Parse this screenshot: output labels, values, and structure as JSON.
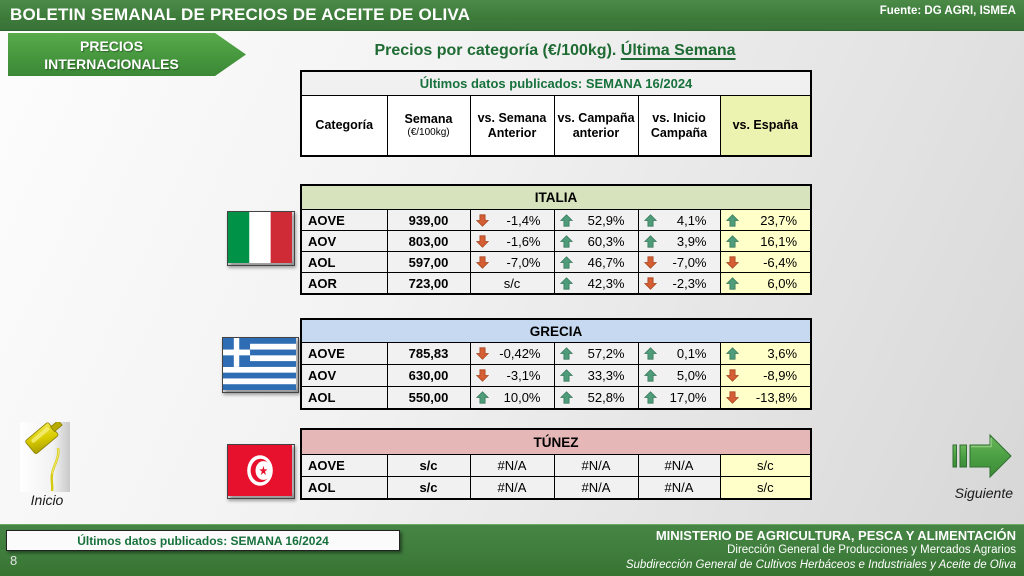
{
  "header": {
    "title": "BOLETIN SEMANAL DE PRECIOS DE ACEITE DE OLIVA",
    "source": "Fuente: DG AGRI, ISMEA"
  },
  "banner": {
    "line1": "PRECIOS",
    "line2": "INTERNACIONALES"
  },
  "page_title": {
    "main": "Precios por categoría (€/100kg). ",
    "underlined": "Última Semana"
  },
  "table_header": {
    "published": "Últimos datos publicados: SEMANA 16/2024",
    "columns": [
      {
        "label": "Categoría"
      },
      {
        "label": "Semana",
        "sub": "(€/100kg)"
      },
      {
        "label": "vs. Semana Anterior"
      },
      {
        "label": "vs. Campaña anterior"
      },
      {
        "label": "vs. Inicio Campaña"
      },
      {
        "label": "vs. España",
        "highlight": true
      }
    ]
  },
  "countries": [
    {
      "name": "ITALIA",
      "flag": "italy",
      "rows": [
        {
          "category": "AOVE",
          "week": "939,00",
          "pcts": [
            {
              "dir": "down",
              "v": "-1,4%"
            },
            {
              "dir": "up",
              "v": "52,9%"
            },
            {
              "dir": "up",
              "v": "4,1%"
            },
            {
              "dir": "up",
              "v": "23,7%"
            }
          ]
        },
        {
          "category": "AOV",
          "week": "803,00",
          "pcts": [
            {
              "dir": "down",
              "v": "-1,6%"
            },
            {
              "dir": "up",
              "v": "60,3%"
            },
            {
              "dir": "up",
              "v": "3,9%"
            },
            {
              "dir": "up",
              "v": "16,1%"
            }
          ]
        },
        {
          "category": "AOL",
          "week": "597,00",
          "pcts": [
            {
              "dir": "down",
              "v": "-7,0%"
            },
            {
              "dir": "up",
              "v": "46,7%"
            },
            {
              "dir": "down",
              "v": "-7,0%"
            },
            {
              "dir": "down",
              "v": "-6,4%"
            }
          ]
        },
        {
          "category": "AOR",
          "week": "723,00",
          "pcts": [
            {
              "dir": "none",
              "v": "s/c"
            },
            {
              "dir": "up",
              "v": "42,3%"
            },
            {
              "dir": "down",
              "v": "-2,3%"
            },
            {
              "dir": "up",
              "v": "6,0%"
            }
          ]
        }
      ]
    },
    {
      "name": "GRECIA",
      "flag": "greece",
      "rows": [
        {
          "category": "AOVE",
          "week": "785,83",
          "pcts": [
            {
              "dir": "down",
              "v": "-0,42%"
            },
            {
              "dir": "up",
              "v": "57,2%"
            },
            {
              "dir": "up",
              "v": "0,1%"
            },
            {
              "dir": "up",
              "v": "3,6%"
            }
          ]
        },
        {
          "category": "AOV",
          "week": "630,00",
          "pcts": [
            {
              "dir": "down",
              "v": "-3,1%"
            },
            {
              "dir": "up",
              "v": "33,3%"
            },
            {
              "dir": "up",
              "v": "5,0%"
            },
            {
              "dir": "down",
              "v": "-8,9%"
            }
          ]
        },
        {
          "category": "AOL",
          "week": "550,00",
          "pcts": [
            {
              "dir": "up",
              "v": "10,0%"
            },
            {
              "dir": "up",
              "v": "52,8%"
            },
            {
              "dir": "up",
              "v": "17,0%"
            },
            {
              "dir": "down",
              "v": "-13,8%"
            }
          ]
        }
      ]
    },
    {
      "name": "TÚNEZ",
      "flag": "tunisia",
      "rows": [
        {
          "category": "AOVE",
          "week": "s/c",
          "pcts": [
            {
              "dir": "none",
              "v": "#N/A"
            },
            {
              "dir": "none",
              "v": "#N/A"
            },
            {
              "dir": "none",
              "v": "#N/A"
            },
            {
              "dir": "none",
              "v": "s/c"
            }
          ]
        },
        {
          "category": "AOL",
          "week": "s/c",
          "pcts": [
            {
              "dir": "none",
              "v": "#N/A"
            },
            {
              "dir": "none",
              "v": "#N/A"
            },
            {
              "dir": "none",
              "v": "#N/A"
            },
            {
              "dir": "none",
              "v": "s/c"
            }
          ]
        }
      ]
    }
  ],
  "nav": {
    "inicio": "Inicio",
    "siguiente": "Siguiente"
  },
  "footer": {
    "published": "Últimos datos publicados: SEMANA 16/2024",
    "page": "8",
    "ministry": "MINISTERIO DE AGRICULTURA, PESCA Y ALIMENTACIÓN",
    "direction": "Dirección General de Producciones y Mercados Agrarios",
    "subdirection": "Subdirección General de Cultivos Herbáceos e Industriales y Aceite de Oliva"
  },
  "colors": {
    "bar_green": "#3e7c3b",
    "banner_green": "#46973e",
    "title_green": "#1e6b33",
    "published_green": "#17713c",
    "italia_header": "#d6e3bc",
    "grecia_header": "#c6d9f0",
    "tunez_header": "#e5b8b7",
    "espana_header": "#ecf2b0",
    "espana_cell": "#ffffc9",
    "row_bg": "#f1f1f1",
    "up_arrow": "#4e9c7a",
    "down_arrow": "#d55e34"
  }
}
